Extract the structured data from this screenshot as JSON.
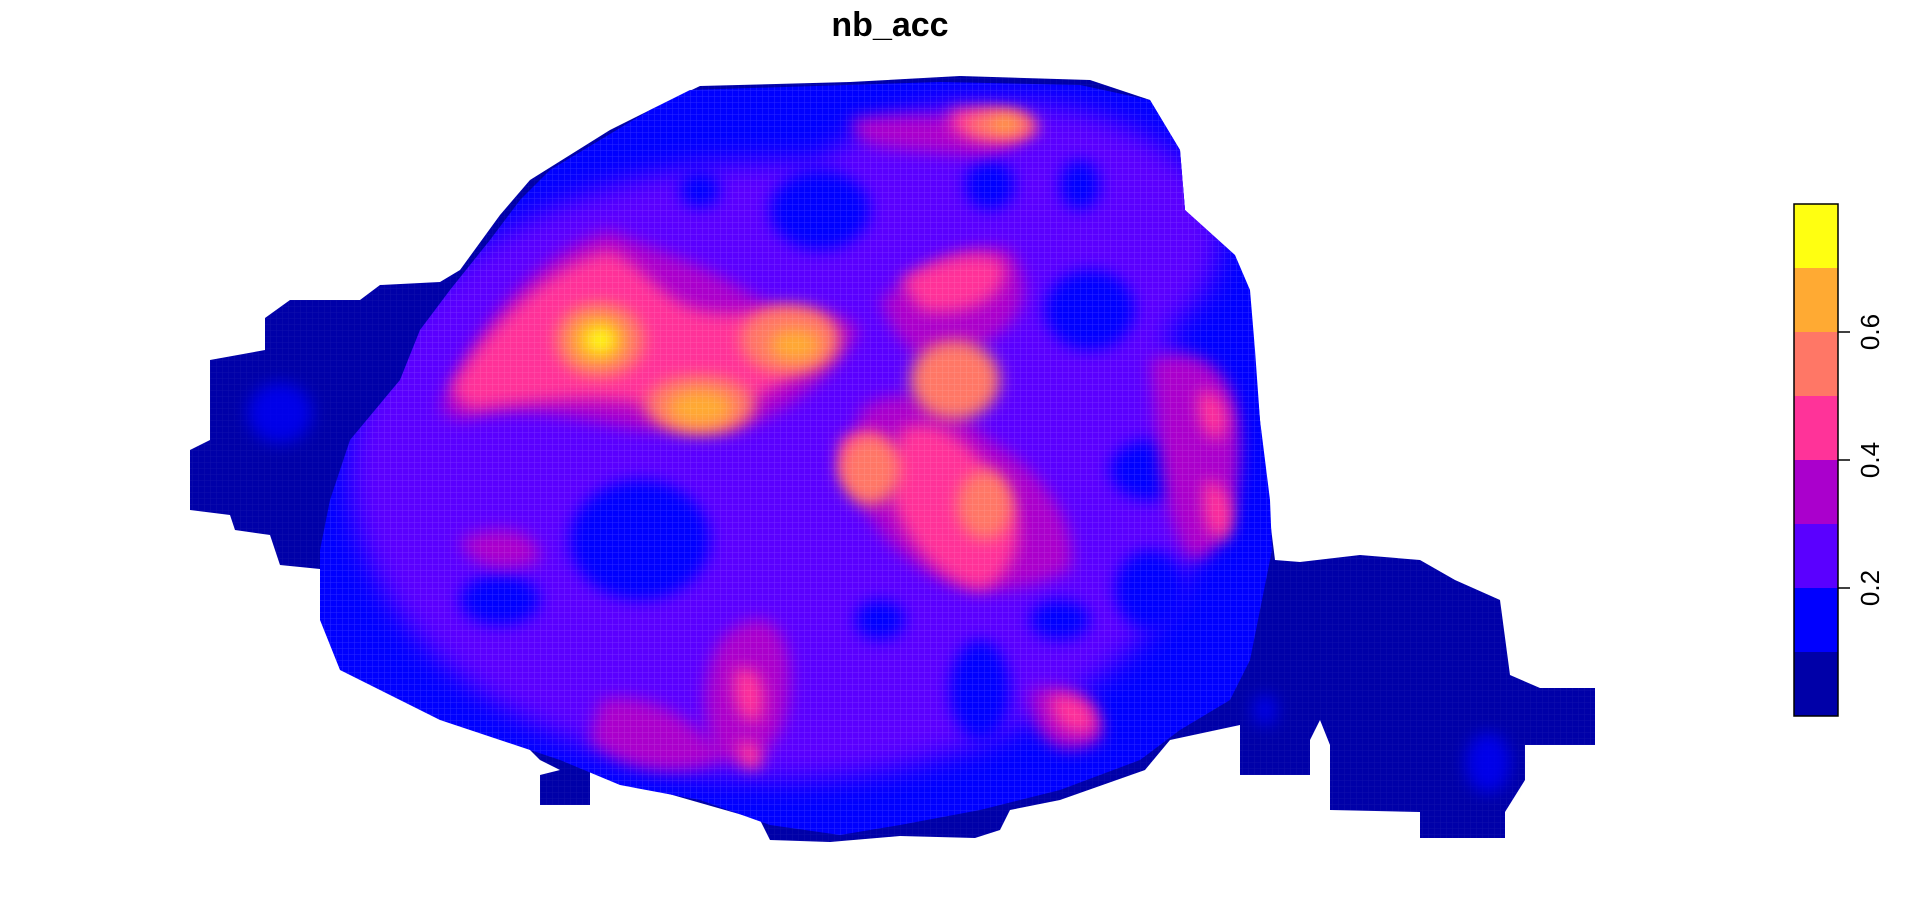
{
  "title": "nb_acc",
  "chart_data": {
    "type": "heatmap",
    "title": "nb_acc",
    "legend": {
      "placement": "right",
      "breaks": [
        0.0,
        0.1,
        0.2,
        0.3,
        0.4,
        0.5,
        0.6,
        0.7,
        0.8
      ],
      "colors": [
        "#0000A8",
        "#0000FF",
        "#5A00FF",
        "#AA00CC",
        "#FF3399",
        "#FF7766",
        "#FFAA33",
        "#FFFF11"
      ],
      "tick_values": [
        0.2,
        0.4,
        0.6
      ],
      "tick_labels": [
        "0.2",
        "0.4",
        "0.6"
      ]
    },
    "background_class_color": "#0000A8",
    "hotspots_description_values": [
      {
        "value": 0.75
      },
      {
        "value": 0.7
      },
      {
        "value": 0.65
      }
    ]
  }
}
